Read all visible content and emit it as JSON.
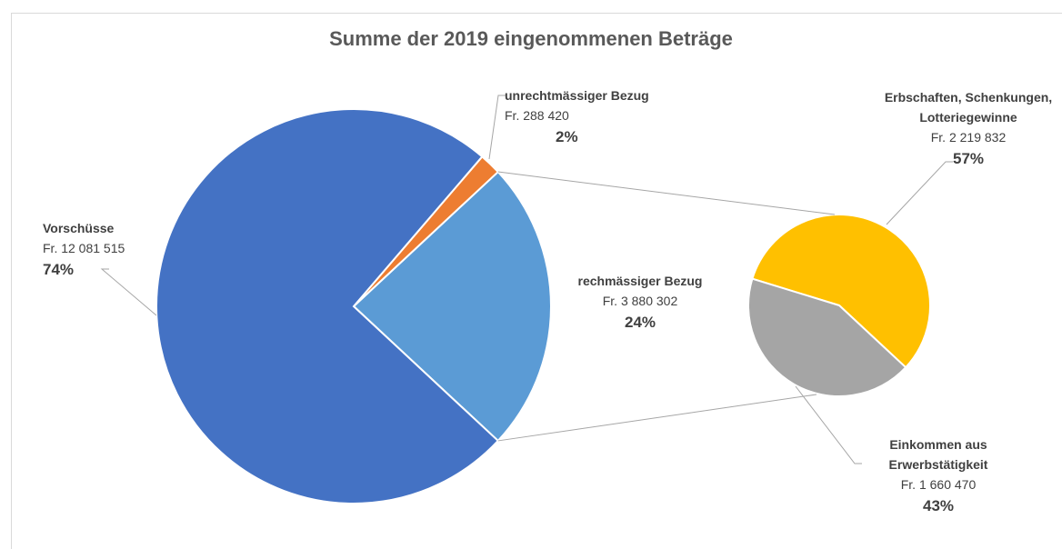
{
  "chart_data": {
    "type": "pie_of_pie",
    "title": "Summe der 2019 eingenommenen Beträge",
    "categories": [
      "Vorschüsse",
      "unrechtmässiger Bezug",
      "rechmässiger Bezug"
    ],
    "values": [
      12081515,
      288420,
      3880302
    ],
    "value_labels": [
      "Fr. 12 081 515",
      "Fr. 288 420",
      "Fr. 3 880 302"
    ],
    "percentages": [
      74,
      2,
      24
    ],
    "percentage_labels": [
      "74%",
      "2%",
      "24%"
    ],
    "colors": [
      "#4472c4",
      "#ed7d31",
      "#5b9bd5"
    ],
    "secondary": {
      "categories": [
        "Erbschaften, Schenkungen, Lotteriegewinne",
        "Einkommen aus Erwerbstätigkeit"
      ],
      "values": [
        2219832,
        1660470
      ],
      "value_labels": [
        "Fr. 2 219 832",
        "Fr. 1 660 470"
      ],
      "percentages": [
        57,
        43
      ],
      "percentage_labels": [
        "57%",
        "43%"
      ],
      "colors": [
        "#ffc000",
        "#a5a5a5"
      ]
    }
  }
}
